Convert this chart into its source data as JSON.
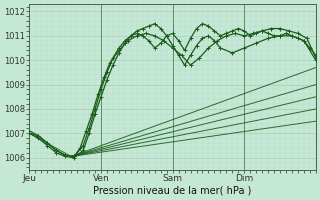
{
  "bg_color": "#c5e8d5",
  "grid_color_major": "#a8ccb8",
  "grid_color_minor": "#b8d8c8",
  "line_color": "#1a5c1a",
  "xlabel": "Pression niveau de la mer( hPa )",
  "x_ticks": [
    0,
    24,
    48,
    72
  ],
  "x_tick_labels": [
    "Jeu",
    "Ven",
    "Sam",
    "Dim"
  ],
  "ylim": [
    1005.5,
    1012.3
  ],
  "yticks": [
    1006,
    1007,
    1008,
    1009,
    1010,
    1011,
    1012
  ],
  "xlim": [
    0,
    96
  ],
  "wiggly_lines": [
    {
      "x": [
        0,
        3,
        6,
        9,
        12,
        15,
        18,
        20,
        22,
        24,
        26,
        28,
        30,
        32,
        34,
        36,
        38,
        40,
        42,
        44,
        46,
        48,
        50,
        52,
        54,
        56,
        58,
        60,
        62,
        64,
        66,
        68,
        70,
        72,
        74,
        76,
        78,
        80,
        82,
        84,
        86,
        88,
        90,
        92,
        94,
        96
      ],
      "y": [
        1007.0,
        1006.9,
        1006.6,
        1006.3,
        1006.1,
        1006.05,
        1006.5,
        1007.2,
        1008.0,
        1008.8,
        1009.5,
        1010.1,
        1010.5,
        1010.8,
        1011.0,
        1011.1,
        1011.0,
        1010.8,
        1010.5,
        1010.7,
        1011.0,
        1011.1,
        1010.8,
        1010.4,
        1010.9,
        1011.3,
        1011.5,
        1011.4,
        1011.2,
        1011.0,
        1011.1,
        1011.2,
        1011.3,
        1011.2,
        1011.0,
        1011.1,
        1011.2,
        1011.1,
        1011.0,
        1011.0,
        1011.1,
        1011.0,
        1010.9,
        1010.8,
        1010.5,
        1010.2
      ]
    },
    {
      "x": [
        0,
        3,
        6,
        9,
        12,
        15,
        18,
        20,
        22,
        24,
        26,
        28,
        30,
        32,
        34,
        36,
        38,
        40,
        42,
        44,
        46,
        48,
        50,
        52,
        54,
        56,
        58,
        60,
        62,
        64,
        68,
        72,
        76,
        80,
        84,
        88,
        92,
        96
      ],
      "y": [
        1007.0,
        1006.8,
        1006.5,
        1006.2,
        1006.05,
        1006.0,
        1006.3,
        1007.0,
        1007.8,
        1008.5,
        1009.2,
        1009.8,
        1010.3,
        1010.7,
        1011.0,
        1011.2,
        1011.3,
        1011.4,
        1011.5,
        1011.3,
        1011.0,
        1010.6,
        1010.2,
        1009.8,
        1010.2,
        1010.6,
        1010.9,
        1011.0,
        1010.8,
        1010.5,
        1010.3,
        1010.5,
        1010.7,
        1010.9,
        1011.0,
        1011.0,
        1010.8,
        1010.0
      ]
    },
    {
      "x": [
        0,
        3,
        6,
        9,
        12,
        15,
        17,
        19,
        21,
        23,
        25,
        27,
        30,
        33,
        36,
        39,
        42,
        45,
        48,
        51,
        54,
        57,
        60,
        63,
        66,
        69,
        72,
        75,
        78,
        81,
        84,
        87,
        90,
        93,
        96
      ],
      "y": [
        1007.1,
        1006.9,
        1006.6,
        1006.3,
        1006.1,
        1006.05,
        1006.4,
        1007.1,
        1007.8,
        1008.6,
        1009.3,
        1009.9,
        1010.4,
        1010.8,
        1011.0,
        1011.1,
        1011.0,
        1010.8,
        1010.5,
        1010.2,
        1009.8,
        1010.1,
        1010.5,
        1010.8,
        1011.0,
        1011.1,
        1011.0,
        1011.1,
        1011.2,
        1011.3,
        1011.3,
        1011.2,
        1011.1,
        1010.9,
        1010.1
      ]
    }
  ],
  "straight_lines": [
    {
      "x0": 14,
      "y0": 1006.05,
      "x1": 96,
      "y1": 1007.5
    },
    {
      "x0": 14,
      "y0": 1006.05,
      "x1": 96,
      "y1": 1008.0
    },
    {
      "x0": 14,
      "y0": 1006.05,
      "x1": 96,
      "y1": 1008.5
    },
    {
      "x0": 14,
      "y0": 1006.05,
      "x1": 96,
      "y1": 1009.0
    },
    {
      "x0": 14,
      "y0": 1006.05,
      "x1": 96,
      "y1": 1009.7
    },
    {
      "x0": 0,
      "y0": 1007.0,
      "x1": 14,
      "y1": 1006.05
    }
  ]
}
